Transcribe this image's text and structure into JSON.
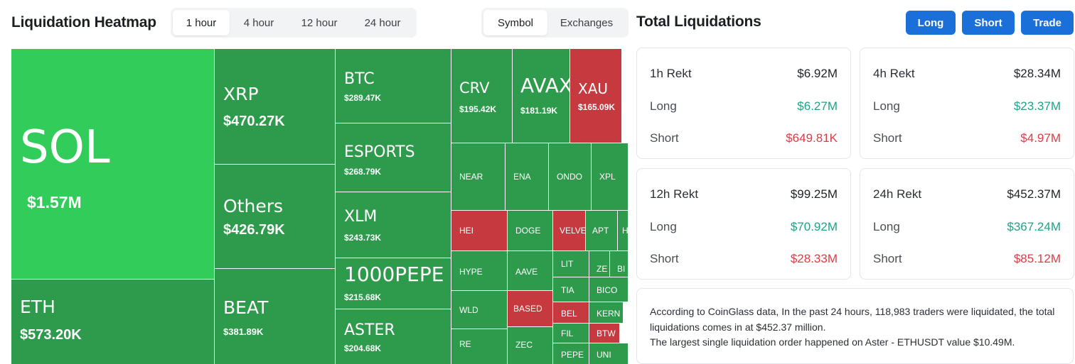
{
  "heatmap": {
    "title": "Liquidation Heatmap",
    "time_tabs": [
      "1 hour",
      "4 hour",
      "12 hour",
      "24 hour"
    ],
    "active_time_tab": "1 hour",
    "view_tabs": [
      "Symbol",
      "Exchanges"
    ],
    "active_view_tab": "Symbol",
    "tiles": [
      {
        "symbol": "SOL",
        "value": "$1.57M",
        "color": "bright"
      },
      {
        "symbol": "ETH",
        "value": "$573.20K",
        "color": "green"
      },
      {
        "symbol": "XRP",
        "value": "$470.27K",
        "color": "green"
      },
      {
        "symbol": "Others",
        "value": "$426.79K",
        "color": "green"
      },
      {
        "symbol": "BEAT",
        "value": "$381.89K",
        "color": "green"
      },
      {
        "symbol": "BTC",
        "value": "$289.47K",
        "color": "green"
      },
      {
        "symbol": "ESPORTS",
        "value": "$268.79K",
        "color": "green"
      },
      {
        "symbol": "XLM",
        "value": "$243.73K",
        "color": "green"
      },
      {
        "symbol": "1000PEPE",
        "value": "$215.68K",
        "color": "green"
      },
      {
        "symbol": "ASTER",
        "value": "$204.68K",
        "color": "green"
      },
      {
        "symbol": "CRV",
        "value": "$195.42K",
        "color": "green"
      },
      {
        "symbol": "AVAX",
        "value": "$181.19K",
        "color": "green"
      },
      {
        "symbol": "XAU",
        "value": "$165.09K",
        "color": "red"
      },
      {
        "symbol": "NEAR",
        "color": "green"
      },
      {
        "symbol": "ENA",
        "color": "green"
      },
      {
        "symbol": "ONDO",
        "color": "green"
      },
      {
        "symbol": "XPL",
        "color": "green"
      },
      {
        "symbol": "HEI",
        "color": "red"
      },
      {
        "symbol": "DOGE",
        "color": "green"
      },
      {
        "symbol": "VELVET",
        "color": "red"
      },
      {
        "symbol": "APT",
        "color": "green"
      },
      {
        "symbol": "H",
        "color": "green"
      },
      {
        "symbol": "HYPE",
        "color": "green"
      },
      {
        "symbol": "AAVE",
        "color": "green"
      },
      {
        "symbol": "LIT",
        "color": "green"
      },
      {
        "symbol": "ZE",
        "color": "green"
      },
      {
        "symbol": "BI",
        "color": "green"
      },
      {
        "symbol": "TIA",
        "color": "green"
      },
      {
        "symbol": "BICO",
        "color": "green"
      },
      {
        "symbol": "WLD",
        "color": "green"
      },
      {
        "symbol": "BASED",
        "color": "red"
      },
      {
        "symbol": "BEL",
        "color": "red"
      },
      {
        "symbol": "KERN",
        "color": "green"
      },
      {
        "symbol": "FIL",
        "color": "green"
      },
      {
        "symbol": "BTW",
        "color": "red"
      },
      {
        "symbol": "RE",
        "color": "green"
      },
      {
        "symbol": "ZEC",
        "color": "green"
      },
      {
        "symbol": "PEPE",
        "color": "green"
      },
      {
        "symbol": "UNI",
        "color": "green"
      }
    ]
  },
  "totals": {
    "title": "Total Liquidations",
    "buttons": {
      "long": "Long",
      "short": "Short",
      "trade": "Trade"
    },
    "cards": [
      {
        "label": "1h Rekt",
        "total": "$6.92M",
        "long_label": "Long",
        "long": "$6.27M",
        "short_label": "Short",
        "short": "$649.81K"
      },
      {
        "label": "4h Rekt",
        "total": "$28.34M",
        "long_label": "Long",
        "long": "$23.37M",
        "short_label": "Short",
        "short": "$4.97M"
      },
      {
        "label": "12h Rekt",
        "total": "$99.25M",
        "long_label": "Long",
        "long": "$70.92M",
        "short_label": "Short",
        "short": "$28.33M"
      },
      {
        "label": "24h Rekt",
        "total": "$452.37M",
        "long_label": "Long",
        "long": "$367.24M",
        "short_label": "Short",
        "short": "$85.12M"
      }
    ],
    "summary_line1": "According to CoinGlass data, In the past 24 hours, 118,983 traders were liquidated, the total liquidations comes in at $452.37 million.",
    "summary_line2": "The largest single liquidation order happened on Aster - ETHUSDT value $10.49M."
  },
  "colors": {
    "green": "#2e9b4c",
    "bright": "#31cc59",
    "red": "#c5393f",
    "accent": "#1a6fd8"
  }
}
